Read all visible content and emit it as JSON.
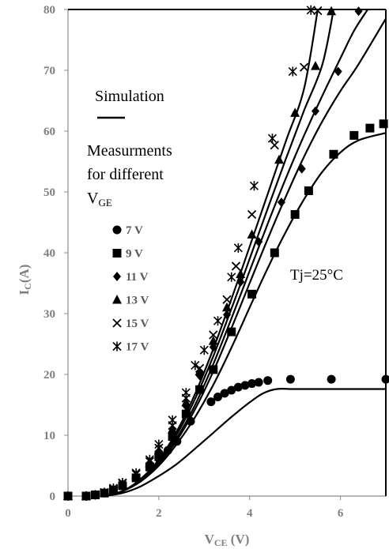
{
  "chart_data": {
    "type": "line",
    "xlabel_main": "V",
    "xlabel_sub": "CE",
    "xlabel_rest": " (V)",
    "ylabel_main": "I",
    "ylabel_sub": "C",
    "ylabel_rest": "(A)",
    "xlim": [
      0,
      7
    ],
    "ylim": [
      0,
      80
    ],
    "xticks": [
      "0",
      "2",
      "4",
      "6"
    ],
    "yticks": [
      "0",
      "10",
      "20",
      "30",
      "40",
      "50",
      "60",
      "70",
      "80"
    ],
    "grid": false,
    "legend": {
      "simulation_label": "Simulation",
      "measurement_line1": "Measurments",
      "measurement_line2": "for different",
      "measurement_line3_main": "V",
      "measurement_line3_sub": "GE",
      "placement": "top-left"
    },
    "annotation": "Tj=25°C",
    "simulation_curves": [
      {
        "x": [
          0.8,
          1.2,
          1.6,
          2.0,
          2.4,
          2.8,
          3.2,
          3.6,
          4.0,
          4.3,
          4.6,
          5.0,
          6.0,
          7.0
        ],
        "y": [
          0,
          0.5,
          1.6,
          3.3,
          5.3,
          7.8,
          10.4,
          13.0,
          15.4,
          16.9,
          17.6,
          17.6,
          17.6,
          17.6
        ]
      },
      {
        "x": [
          0.8,
          1.2,
          1.6,
          2.0,
          2.4,
          2.8,
          3.2,
          3.6,
          4.0,
          4.4,
          4.8,
          5.2,
          5.6,
          6.0,
          6.4,
          7.0
        ],
        "y": [
          0,
          0.8,
          2.4,
          5.0,
          8.6,
          13.0,
          18.3,
          24.4,
          31.0,
          37.5,
          43.5,
          48.8,
          53.3,
          56.5,
          58.5,
          59.7
        ]
      },
      {
        "x": [
          0.8,
          1.2,
          1.6,
          2.0,
          2.4,
          2.8,
          3.2,
          3.6,
          4.0,
          4.4,
          4.8,
          5.2,
          5.6,
          6.0,
          6.4,
          7.0
        ],
        "y": [
          0,
          0.8,
          2.5,
          5.3,
          9.2,
          14.3,
          20.5,
          27.6,
          35.0,
          42.3,
          49.3,
          55.8,
          61.6,
          66.6,
          71.0,
          78.5
        ]
      },
      {
        "x": [
          0.8,
          1.2,
          1.6,
          2.0,
          2.4,
          2.8,
          3.2,
          3.6,
          4.0,
          4.4,
          4.8,
          5.2,
          5.6,
          6.0,
          6.3,
          6.6
        ],
        "y": [
          0,
          0.8,
          2.6,
          5.5,
          9.6,
          15.0,
          21.7,
          29.2,
          37.0,
          44.8,
          52.3,
          59.3,
          65.8,
          72.0,
          76.5,
          80
        ]
      },
      {
        "x": [
          0.8,
          1.2,
          1.6,
          2.0,
          2.4,
          2.8,
          3.2,
          3.6,
          4.0,
          4.4,
          4.8,
          5.2,
          5.6,
          5.85
        ],
        "y": [
          0,
          0.8,
          2.7,
          5.8,
          10.2,
          16.0,
          23.0,
          30.8,
          39.0,
          47.3,
          55.5,
          63.4,
          70.9,
          80
        ]
      },
      {
        "x": [
          0.8,
          1.2,
          1.6,
          2.0,
          2.4,
          2.8,
          3.2,
          3.6,
          4.0,
          4.4,
          4.8,
          5.2,
          5.5
        ],
        "y": [
          0,
          0.8,
          2.8,
          6.0,
          10.7,
          16.8,
          24.2,
          32.4,
          41.0,
          49.7,
          58.4,
          67.0,
          80
        ]
      }
    ],
    "series": [
      {
        "name": "7 V",
        "marker": "circle",
        "x": [
          0,
          0.4,
          0.6,
          0.8,
          1.0,
          1.2,
          1.5,
          1.8,
          2.0,
          2.2,
          2.4,
          2.7,
          3.15,
          3.3,
          3.45,
          3.6,
          3.75,
          3.9,
          4.05,
          4.2,
          4.4,
          4.9,
          5.8,
          7.0
        ],
        "y": [
          0,
          0,
          0.2,
          0.5,
          1.0,
          1.7,
          3.0,
          4.8,
          6.2,
          7.5,
          9.0,
          12.3,
          15.5,
          16.3,
          16.9,
          17.4,
          17.9,
          18.2,
          18.5,
          18.7,
          19.0,
          19.2,
          19.2,
          19.2
        ]
      },
      {
        "name": "9 V",
        "marker": "square",
        "x": [
          0,
          0.4,
          0.6,
          0.8,
          1.0,
          1.2,
          1.5,
          1.8,
          2.0,
          2.3,
          2.6,
          2.9,
          3.2,
          3.6,
          4.05,
          4.55,
          5.0,
          5.3,
          5.85,
          6.3,
          6.65,
          6.95
        ],
        "y": [
          0,
          0,
          0.2,
          0.5,
          1.0,
          1.7,
          3.0,
          4.8,
          6.5,
          9.8,
          13.5,
          17.5,
          20.8,
          27.0,
          33.2,
          40.0,
          46.3,
          50.2,
          56.2,
          59.3,
          60.5,
          61.2
        ]
      },
      {
        "name": "11 V",
        "marker": "diamond",
        "x": [
          0,
          0.4,
          0.6,
          0.8,
          1.0,
          1.2,
          1.5,
          1.8,
          2.0,
          2.3,
          2.6,
          2.9,
          3.2,
          3.5,
          3.8,
          4.2,
          4.7,
          5.15,
          5.45,
          5.95,
          6.4
        ],
        "y": [
          0,
          0,
          0.2,
          0.5,
          1.1,
          1.9,
          3.3,
          5.2,
          7.0,
          10.4,
          14.8,
          19.8,
          24.5,
          29.8,
          35.2,
          41.8,
          48.3,
          53.8,
          63.3,
          69.8,
          79.7
        ]
      },
      {
        "name": "13 V",
        "marker": "triangle",
        "x": [
          0,
          0.4,
          0.6,
          0.8,
          1.0,
          1.2,
          1.5,
          1.8,
          2.0,
          2.3,
          2.6,
          2.9,
          3.2,
          3.5,
          3.8,
          4.05,
          4.65,
          5.0,
          5.45,
          5.8
        ],
        "y": [
          0,
          0,
          0.2,
          0.5,
          1.1,
          2.0,
          3.4,
          5.4,
          7.5,
          11.0,
          15.4,
          20.5,
          25.5,
          31.0,
          36.5,
          43.0,
          55.3,
          63.0,
          70.7,
          79.7
        ]
      },
      {
        "name": "15 V",
        "marker": "x",
        "x": [
          0,
          0.4,
          0.6,
          0.8,
          1.0,
          1.2,
          1.5,
          1.8,
          2.0,
          2.3,
          2.6,
          2.9,
          3.2,
          3.5,
          3.7,
          4.05,
          4.55,
          5.2,
          5.5
        ],
        "y": [
          0,
          0,
          0.2,
          0.6,
          1.2,
          2.1,
          3.6,
          5.7,
          7.9,
          11.6,
          16.1,
          21.0,
          26.5,
          32.3,
          37.8,
          46.3,
          57.7,
          70.5,
          79.8
        ]
      },
      {
        "name": "17 V",
        "marker": "star",
        "x": [
          0,
          0.4,
          0.6,
          0.8,
          1.0,
          1.2,
          1.5,
          1.8,
          2.0,
          2.3,
          2.6,
          2.8,
          3.0,
          3.3,
          3.6,
          3.75,
          4.1,
          4.5,
          4.95,
          5.35
        ],
        "y": [
          0,
          0,
          0.2,
          0.6,
          1.3,
          2.2,
          3.8,
          6.0,
          8.5,
          12.5,
          17.0,
          21.5,
          24.0,
          28.8,
          36.0,
          40.8,
          51.0,
          58.8,
          69.8,
          79.9
        ]
      }
    ]
  }
}
